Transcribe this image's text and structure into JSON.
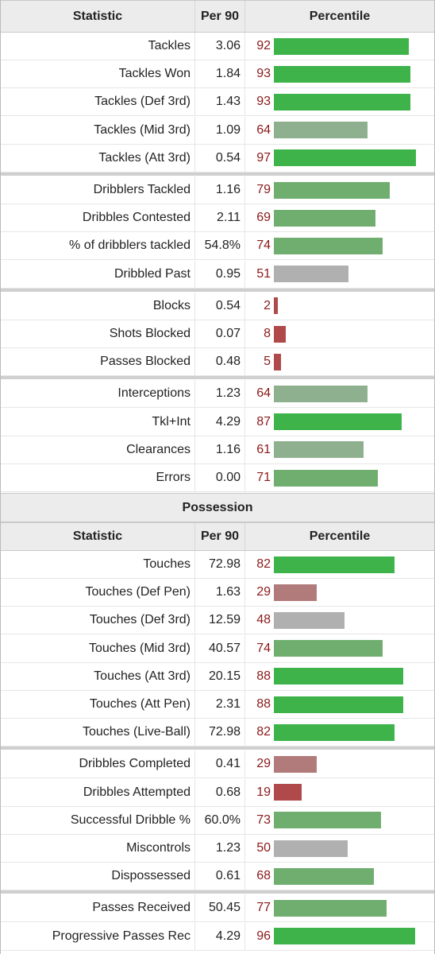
{
  "header": {
    "col_statistic": "Statistic",
    "col_per90": "Per 90",
    "col_percentile": "Percentile"
  },
  "section_possession": "Possession",
  "colors": {
    "high": "#3db34a",
    "good": "#6fae6f",
    "mid": "#8fb08f",
    "neutral": "#b0b0b0",
    "low": "#b27b7b",
    "verylow": "#b04a4a"
  },
  "defense_groups": [
    [
      {
        "stat": "Tackles",
        "per90": "3.06",
        "pct": "92"
      },
      {
        "stat": "Tackles Won",
        "per90": "1.84",
        "pct": "93"
      },
      {
        "stat": "Tackles (Def 3rd)",
        "per90": "1.43",
        "pct": "93"
      },
      {
        "stat": "Tackles (Mid 3rd)",
        "per90": "1.09",
        "pct": "64"
      },
      {
        "stat": "Tackles (Att 3rd)",
        "per90": "0.54",
        "pct": "97"
      }
    ],
    [
      {
        "stat": "Dribblers Tackled",
        "per90": "1.16",
        "pct": "79"
      },
      {
        "stat": "Dribbles Contested",
        "per90": "2.11",
        "pct": "69"
      },
      {
        "stat": "% of dribblers tackled",
        "per90": "54.8%",
        "pct": "74"
      },
      {
        "stat": "Dribbled Past",
        "per90": "0.95",
        "pct": "51"
      }
    ],
    [
      {
        "stat": "Blocks",
        "per90": "0.54",
        "pct": "2"
      },
      {
        "stat": "Shots Blocked",
        "per90": "0.07",
        "pct": "8"
      },
      {
        "stat": "Passes Blocked",
        "per90": "0.48",
        "pct": "5"
      }
    ],
    [
      {
        "stat": "Interceptions",
        "per90": "1.23",
        "pct": "64"
      },
      {
        "stat": "Tkl+Int",
        "per90": "4.29",
        "pct": "87"
      },
      {
        "stat": "Clearances",
        "per90": "1.16",
        "pct": "61"
      },
      {
        "stat": "Errors",
        "per90": "0.00",
        "pct": "71"
      }
    ]
  ],
  "possession_groups": [
    [
      {
        "stat": "Touches",
        "per90": "72.98",
        "pct": "82"
      },
      {
        "stat": "Touches (Def Pen)",
        "per90": "1.63",
        "pct": "29"
      },
      {
        "stat": "Touches (Def 3rd)",
        "per90": "12.59",
        "pct": "48"
      },
      {
        "stat": "Touches (Mid 3rd)",
        "per90": "40.57",
        "pct": "74"
      },
      {
        "stat": "Touches (Att 3rd)",
        "per90": "20.15",
        "pct": "88"
      },
      {
        "stat": "Touches (Att Pen)",
        "per90": "2.31",
        "pct": "88"
      },
      {
        "stat": "Touches (Live-Ball)",
        "per90": "72.98",
        "pct": "82"
      }
    ],
    [
      {
        "stat": "Dribbles Completed",
        "per90": "0.41",
        "pct": "29"
      },
      {
        "stat": "Dribbles Attempted",
        "per90": "0.68",
        "pct": "19"
      },
      {
        "stat": "Successful Dribble %",
        "per90": "60.0%",
        "pct": "73"
      },
      {
        "stat": "Miscontrols",
        "per90": "1.23",
        "pct": "50"
      },
      {
        "stat": "Dispossessed",
        "per90": "0.61",
        "pct": "68"
      }
    ],
    [
      {
        "stat": "Passes Received",
        "per90": "50.45",
        "pct": "77"
      },
      {
        "stat": "Progressive Passes Rec",
        "per90": "4.29",
        "pct": "96"
      }
    ]
  ]
}
